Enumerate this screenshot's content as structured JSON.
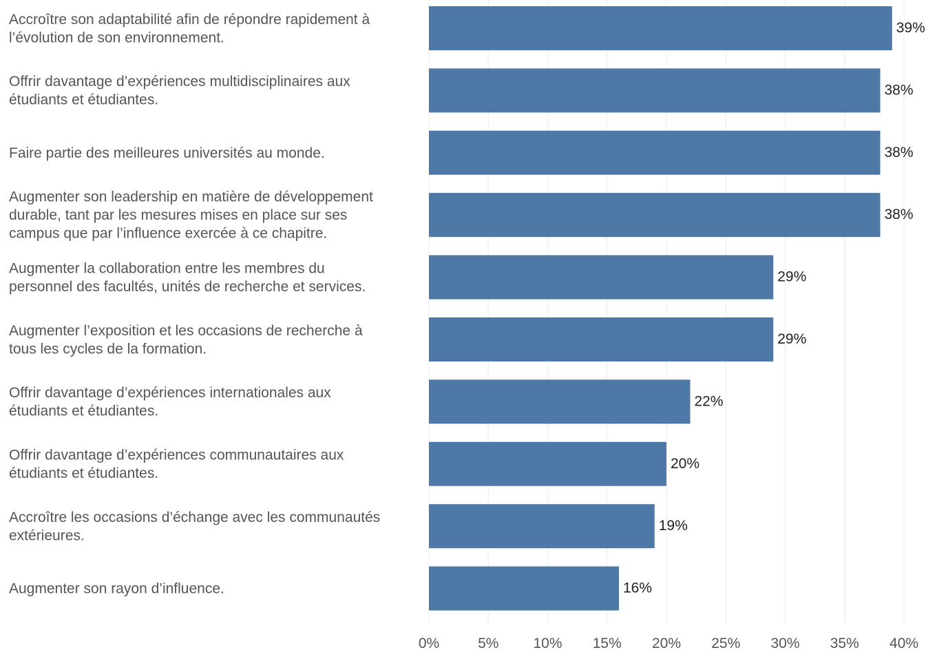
{
  "chart_data": {
    "type": "bar",
    "orientation": "horizontal",
    "categories": [
      [
        "Accroître son adaptabilité afin de répondre rapidement à",
        "l’évolution de son environnement."
      ],
      [
        "Offrir davantage d’expériences multidisciplinaires aux",
        "étudiants et étudiantes."
      ],
      [
        "Faire partie des meilleures universités au monde."
      ],
      [
        "Augmenter son leadership en matière de développement",
        "durable, tant par les mesures mises en place sur ses",
        "campus que par l’influence exercée à ce chapitre."
      ],
      [
        "Augmenter la collaboration entre les membres du",
        "personnel des facultés, unités de recherche et services."
      ],
      [
        "Augmenter l’exposition et les occasions de recherche à",
        "tous les cycles de la formation."
      ],
      [
        "Offrir davantage d’expériences internationales aux",
        "étudiants et étudiantes."
      ],
      [
        "Offrir davantage d’expériences communautaires aux",
        "étudiants et étudiantes."
      ],
      [
        "Accroître les occasions d’échange avec les communautés",
        "extérieures."
      ],
      [
        "Augmenter son rayon d’influence."
      ]
    ],
    "values": [
      39,
      38,
      38,
      38,
      29,
      29,
      22,
      20,
      19,
      16
    ],
    "value_labels": [
      "39%",
      "38%",
      "38%",
      "38%",
      "29%",
      "29%",
      "22%",
      "20%",
      "19%",
      "16%"
    ],
    "xlim": [
      0,
      40
    ],
    "xticks": [
      0,
      5,
      10,
      15,
      20,
      25,
      30,
      35,
      40
    ],
    "xtick_labels": [
      "0%",
      "5%",
      "10%",
      "15%",
      "20%",
      "25%",
      "30%",
      "35%",
      "40%"
    ],
    "grid": true,
    "bar_color": "#4e79a7"
  }
}
